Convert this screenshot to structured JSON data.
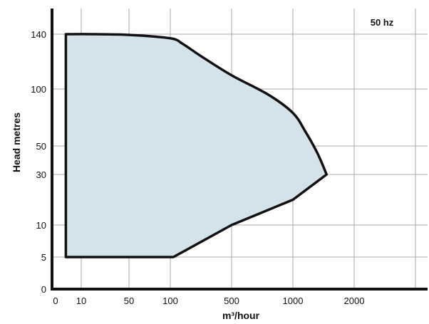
{
  "chart_data": {
    "type": "area",
    "annotation": "50 hz",
    "xlabel": "m³/hour",
    "ylabel": "Head metres",
    "x_ticks": [
      "0",
      "10",
      "50",
      "100",
      "500",
      "1000",
      "2000"
    ],
    "y_ticks": [
      "0",
      "5",
      "10",
      "30",
      "50",
      "100",
      "140"
    ],
    "x_scale": "nonuniform",
    "y_scale": "nonuniform",
    "grid": true,
    "series": [
      {
        "points": [
          {
            "x": 4,
            "y": 140
          },
          {
            "x": 20,
            "y": 140
          },
          {
            "x": 50,
            "y": 139.5
          },
          {
            "x": 100,
            "y": 137
          },
          {
            "x": 180,
            "y": 133
          },
          {
            "x": 300,
            "y": 124
          },
          {
            "x": 500,
            "y": 110
          },
          {
            "x": 800,
            "y": 95
          },
          {
            "x": 1000,
            "y": 79
          },
          {
            "x": 1200,
            "y": 63
          },
          {
            "x": 1400,
            "y": 45
          },
          {
            "x": 1550,
            "y": 30
          },
          {
            "x": 1000,
            "y": 20
          },
          {
            "x": 500,
            "y": 10
          },
          {
            "x": 120,
            "y": 5
          },
          {
            "x": 4,
            "y": 5
          }
        ]
      }
    ],
    "colors": {
      "fill": "#d4e2e9",
      "outline": "#111111",
      "grid": "#aaaaaa",
      "axis": "#111111"
    }
  }
}
